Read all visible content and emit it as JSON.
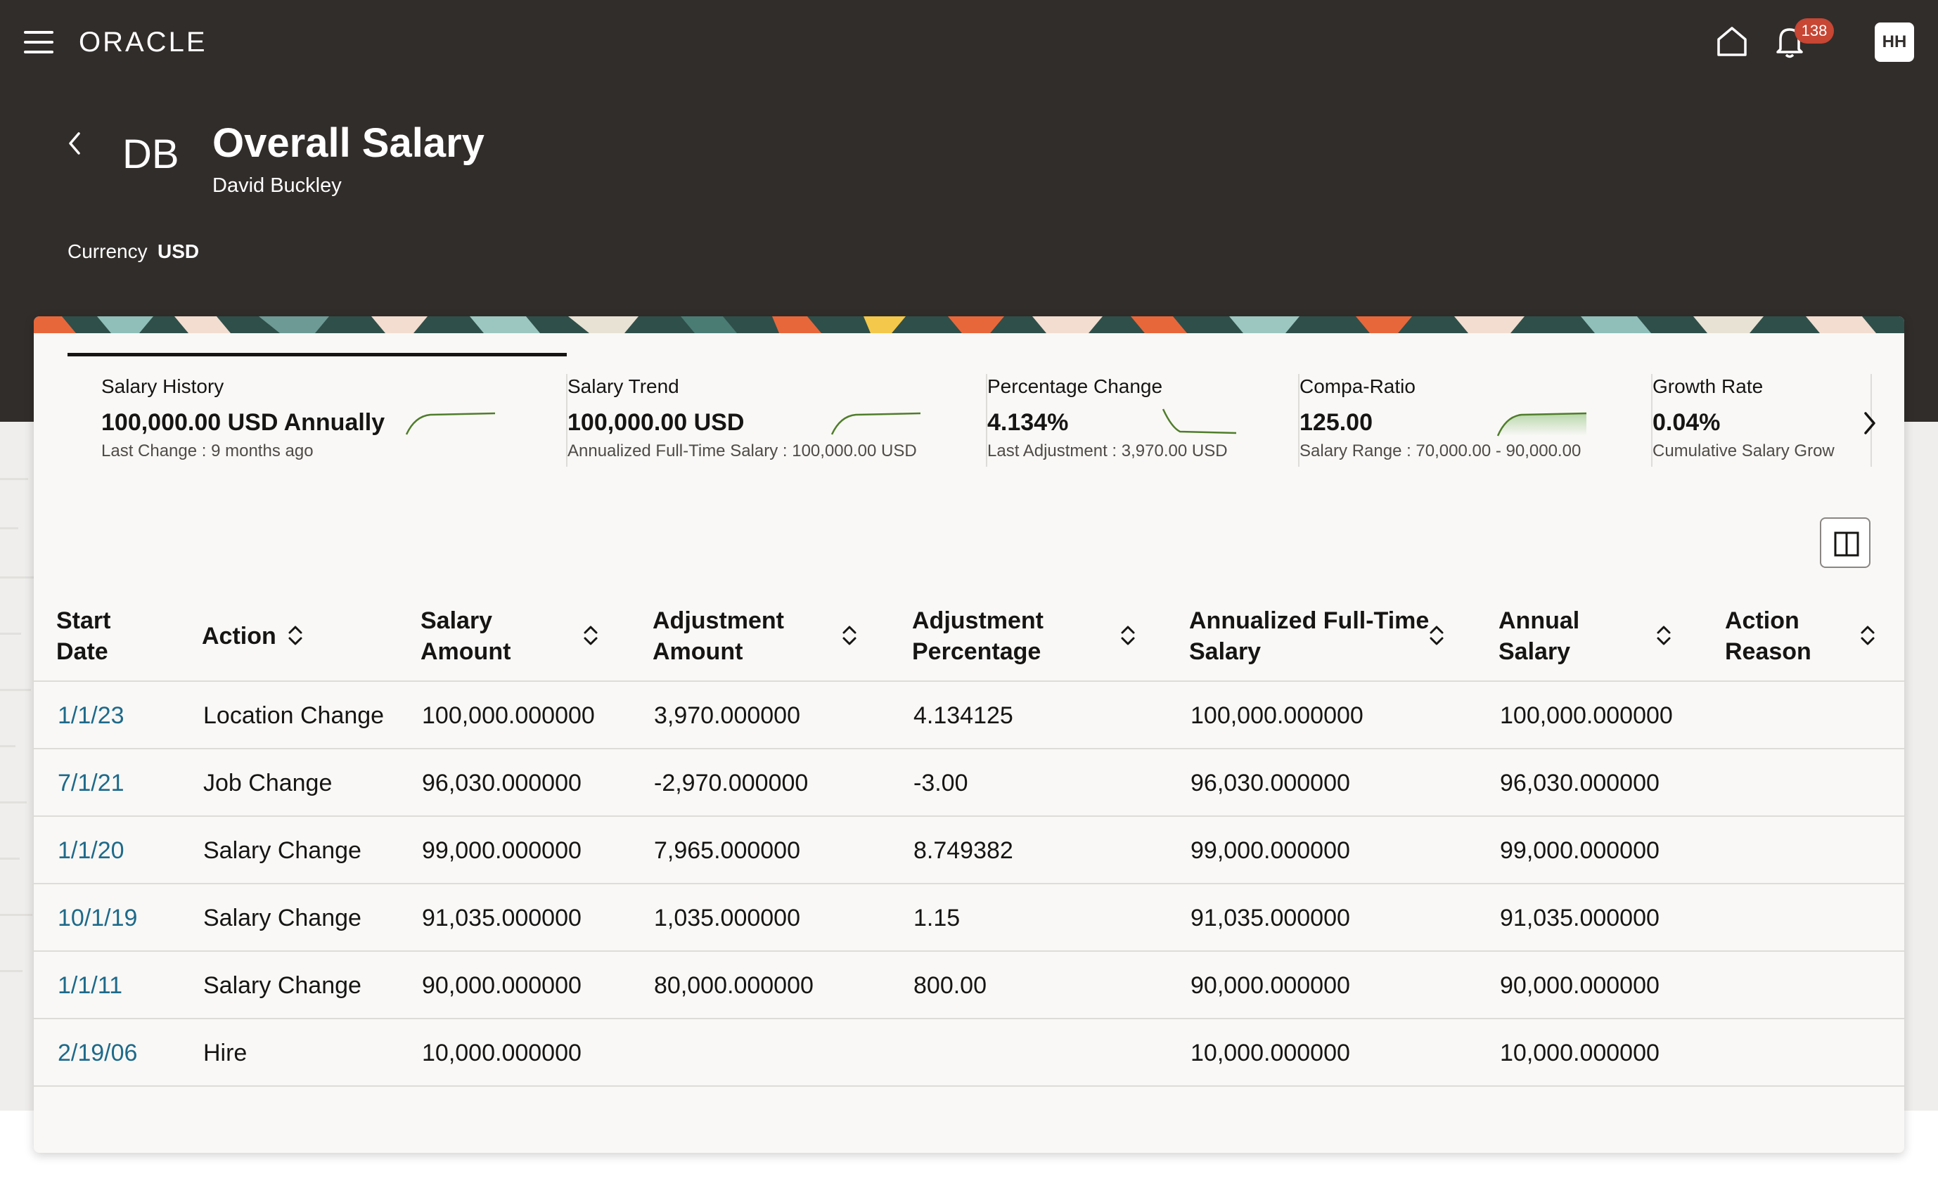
{
  "app": {
    "logo_text": "ORACLE",
    "notification_count": "138",
    "user_initials": "HH"
  },
  "header": {
    "person_initials": "DB",
    "title": "Overall Salary",
    "person_name": "David Buckley",
    "currency_label": "Currency",
    "currency_value": "USD"
  },
  "metrics": [
    {
      "title": "Salary History",
      "value": "100,000.00 USD Annually",
      "sub": "Last Change : 9 months ago"
    },
    {
      "title": "Salary Trend",
      "value": "100,000.00 USD",
      "sub": "Annualized Full-Time Salary : 100,000.00 USD"
    },
    {
      "title": "Percentage Change",
      "value": "4.134%",
      "sub": "Last Adjustment : 3,970.00 USD"
    },
    {
      "title": "Compa-Ratio",
      "value": "125.00",
      "sub": "Salary Range : 70,000.00 - 90,000.00"
    },
    {
      "title": "Growth Rate",
      "value": "0.04%",
      "sub": "Cumulative Salary Grow"
    }
  ],
  "table": {
    "columns": [
      {
        "label": "Start Date"
      },
      {
        "label": "Action"
      },
      {
        "label": "Salary Amount"
      },
      {
        "label": "Adjustment Amount"
      },
      {
        "label": "Adjustment Percentage"
      },
      {
        "label": "Annualized Full-Time Salary"
      },
      {
        "label": "Annual Salary"
      },
      {
        "label": "Action Reason"
      }
    ],
    "header_lines": [
      [
        "Start",
        "Date"
      ],
      [
        "Action"
      ],
      [
        "Salary",
        "Amount"
      ],
      [
        "Adjustment",
        "Amount"
      ],
      [
        "Adjustment",
        "Percentage"
      ],
      [
        "Annualized Full-Time",
        "Salary"
      ],
      [
        "Annual",
        "Salary"
      ],
      [
        "Action",
        "Reason"
      ]
    ],
    "rows": [
      [
        "1/1/23",
        "Location Change",
        "100,000.000000",
        "3,970.000000",
        "4.134125",
        "100,000.000000",
        "100,000.000000",
        ""
      ],
      [
        "7/1/21",
        "Job Change",
        "96,030.000000",
        "-2,970.000000",
        "-3.00",
        "96,030.000000",
        "96,030.000000",
        ""
      ],
      [
        "1/1/20",
        "Salary Change",
        "99,000.000000",
        "7,965.000000",
        "8.749382",
        "99,000.000000",
        "99,000.000000",
        ""
      ],
      [
        "10/1/19",
        "Salary Change",
        "91,035.000000",
        "1,035.000000",
        "1.15",
        "91,035.000000",
        "91,035.000000",
        ""
      ],
      [
        "1/1/11",
        "Salary Change",
        "90,000.000000",
        "80,000.000000",
        "800.00",
        "90,000.000000",
        "90,000.000000",
        ""
      ],
      [
        "2/19/06",
        "Hire",
        "10,000.000000",
        "",
        "",
        "10,000.000000",
        "10,000.000000",
        ""
      ]
    ]
  },
  "colors": {
    "header_bg": "#312d2a",
    "link": "#1e6a8a",
    "badge": "#c74634",
    "spark": "#4f7d2a"
  }
}
